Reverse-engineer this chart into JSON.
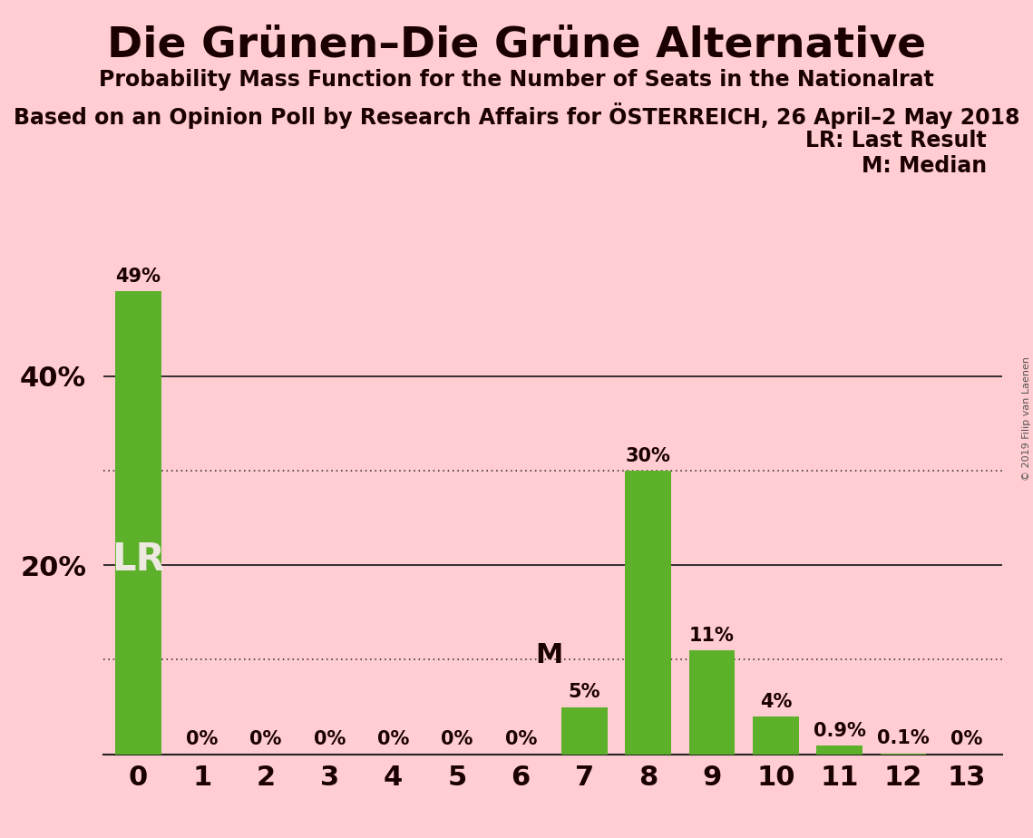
{
  "title": "Die Grünen–Die Grüne Alternative",
  "subtitle1": "Probability Mass Function for the Number of Seats in the Nationalrat",
  "subtitle2": "Based on an Opinion Poll by Research Affairs for ÖSTERREICH, 26 April–2 May 2018",
  "categories": [
    0,
    1,
    2,
    3,
    4,
    5,
    6,
    7,
    8,
    9,
    10,
    11,
    12,
    13
  ],
  "values": [
    49,
    0,
    0,
    0,
    0,
    0,
    0,
    5,
    30,
    11,
    4,
    0.9,
    0.1,
    0
  ],
  "bar_color": "#5DB02A",
  "background_color": "#FFCDD2",
  "label_color": "#1A0000",
  "bar_label_inside": {
    "index": 0,
    "text": "LR"
  },
  "bar_label_beside": {
    "index": 7,
    "text": "M"
  },
  "legend_text": [
    "LR: Last Result",
    "M: Median"
  ],
  "solid_gridlines": [
    20,
    40
  ],
  "dotted_gridlines": [
    10,
    30
  ],
  "ylim": [
    0,
    55
  ],
  "watermark": "© 2019 Filip van Laenen",
  "value_labels": [
    "49%",
    "0%",
    "0%",
    "0%",
    "0%",
    "0%",
    "0%",
    "5%",
    "30%",
    "11%",
    "4%",
    "0.9%",
    "0.1%",
    "0%"
  ],
  "ytick_positions": [
    20,
    40
  ],
  "ytick_labels": [
    "20%",
    "40%"
  ]
}
